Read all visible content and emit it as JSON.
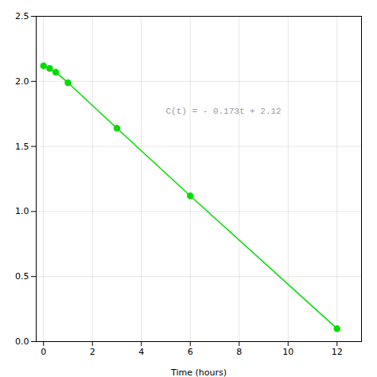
{
  "chart_data": {
    "type": "line",
    "x": [
      0,
      0.25,
      0.5,
      1,
      3,
      6,
      12
    ],
    "values": [
      2.12,
      2.1,
      2.07,
      1.99,
      1.64,
      1.12,
      0.1
    ],
    "color": "#00dd00",
    "marker": "circle",
    "xlabel": "Time (hours)",
    "xlim": [
      -0.3,
      13.0
    ],
    "ylim": [
      0.0,
      2.5
    ],
    "xticks": [
      0,
      2,
      4,
      6,
      8,
      10,
      12
    ],
    "yticks": [
      {
        "value": 0,
        "label": "0.0"
      },
      0.5,
      {
        "value": 1,
        "label": "1.0"
      },
      1.5,
      {
        "value": 2,
        "label": "2.0"
      },
      2.5
    ],
    "grid": true,
    "annotations": [
      {
        "text": "C(t) = - 0.173t + 2.12",
        "x": 5.0,
        "y": 1.75,
        "color": "#999999"
      }
    ]
  }
}
